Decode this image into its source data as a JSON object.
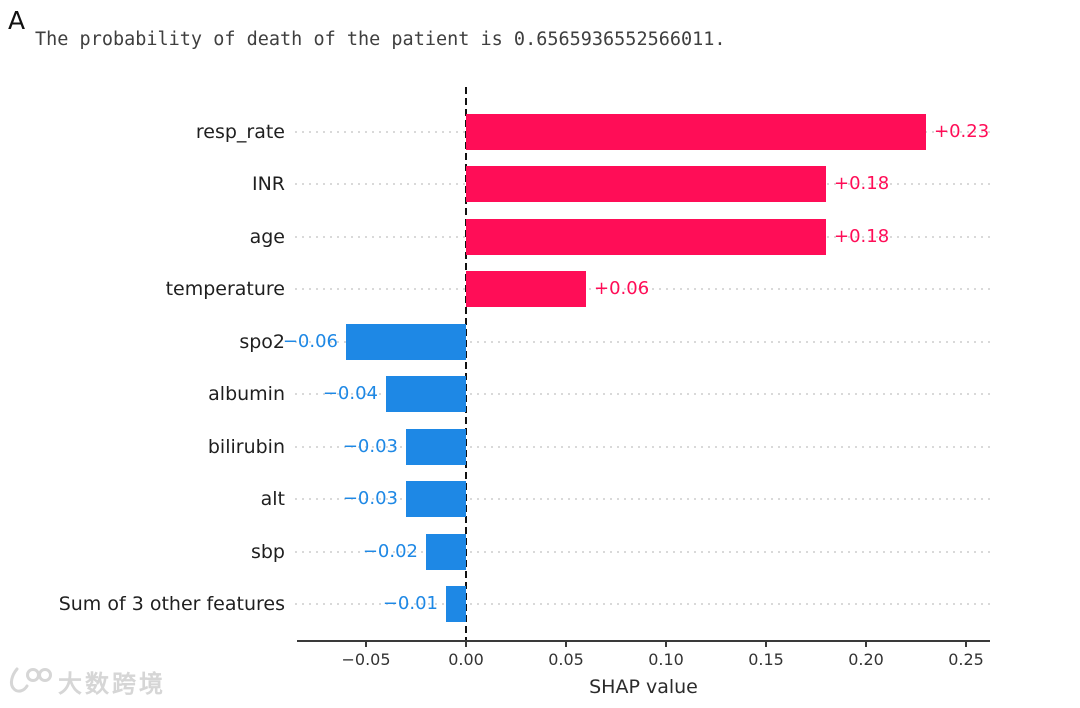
{
  "panel_label": "A",
  "title": "The probability of death of the patient is 0.6565936552566011.",
  "watermark": {
    "text": "大数跨境",
    "logo": "dashukuajing-logo"
  },
  "colors": {
    "positive_bar": "#ff0d57",
    "negative_bar": "#1e88e5",
    "axis": "#3a3a3a",
    "gridline": "#d9d9d9",
    "zero_line": "#111111",
    "watermark": "#d6d6d6"
  },
  "chart_data": {
    "type": "bar",
    "orientation": "horizontal",
    "title": "",
    "xlabel": "SHAP value",
    "ylabel": "",
    "categories": [
      "resp_rate",
      "INR",
      "age",
      "temperature",
      "spo2",
      "albumin",
      "bilirubin",
      "alt",
      "sbp",
      "Sum of 3 other features"
    ],
    "values": [
      0.23,
      0.18,
      0.18,
      0.06,
      -0.06,
      -0.04,
      -0.03,
      -0.03,
      -0.02,
      -0.01
    ],
    "value_labels": [
      "+0.23",
      "+0.18",
      "+0.18",
      "+0.06",
      "−0.06",
      "−0.04",
      "−0.03",
      "−0.03",
      "−0.02",
      "−0.01"
    ],
    "x_ticks": [
      -0.05,
      0,
      0.05,
      0.1,
      0.15,
      0.2,
      0.25
    ],
    "x_tick_labels": [
      "−0.05",
      "0.00",
      "0.05",
      "0.10",
      "0.15",
      "0.20",
      "0.25"
    ],
    "xlim": [
      -0.0845,
      0.262
    ],
    "grid": "horizontal dotted line per category row",
    "zero_line": true,
    "legend": false
  }
}
